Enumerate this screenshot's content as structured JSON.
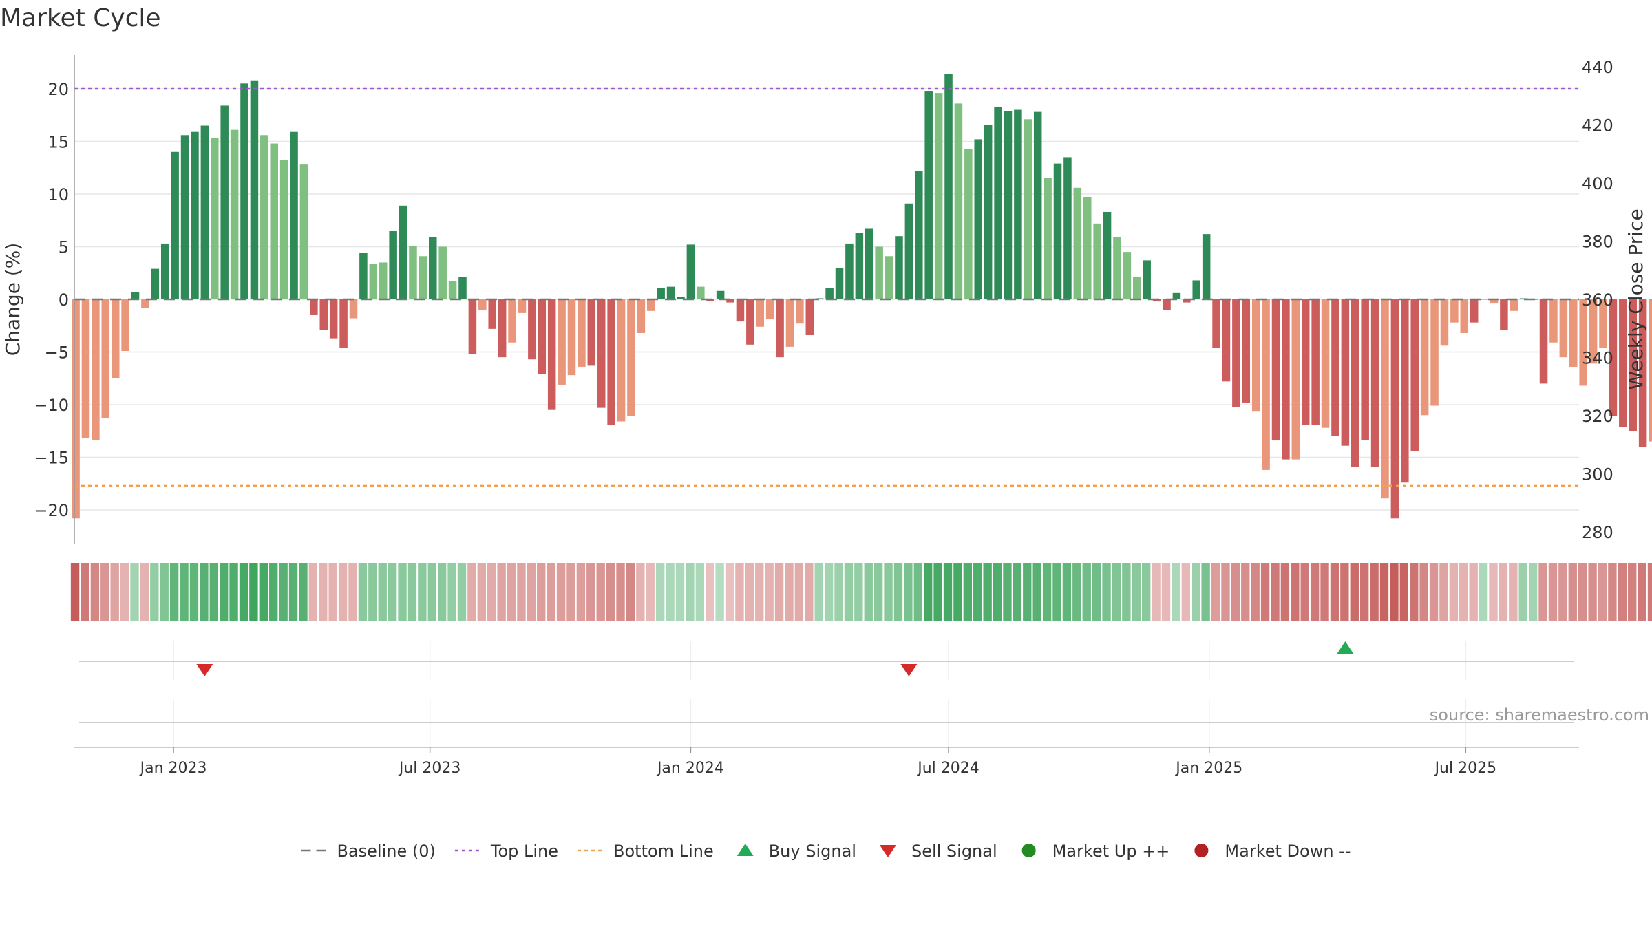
{
  "title": "Market Cycle",
  "source": "source: sharemaestro.com",
  "colors": {
    "up_dark": "#2e8b57",
    "up_light": "#7fbf7f",
    "down_dark": "#cd5c5c",
    "down_light": "#e9967a",
    "top_line": "#9b59d0",
    "bottom_line": "#f0a050",
    "buy": "#22aa55",
    "sell": "#d42a2a",
    "market_up": "#228b22",
    "market_down": "#b22222",
    "baseline": "#777777",
    "grid": "#e6e6e6"
  },
  "chart_data": {
    "type": "bar",
    "ylabel": "Change (%)",
    "y2label": "Weekly Close Price",
    "ylim": [
      -23.2,
      23.2
    ],
    "y2lim": [
      276,
      444
    ],
    "yticks": [
      -20,
      -15,
      -10,
      -5,
      0,
      5,
      10,
      15,
      20
    ],
    "yticklabels": [
      "−20",
      "−15",
      "−10",
      "−5",
      "0",
      "5",
      "10",
      "15",
      "20"
    ],
    "y2ticks": [
      280,
      300,
      320,
      340,
      360,
      380,
      400,
      420,
      440
    ],
    "top_line": 20,
    "bottom_line": -17.7,
    "grid": true,
    "start_date": "2022-10-24",
    "week_days": 7,
    "xlim": [
      "2022-10-23",
      "2025-09-19"
    ],
    "xticks": [
      {
        "date": "2023-01-01",
        "label": "Jan 2023"
      },
      {
        "date": "2023-07-01",
        "label": "Jul 2023"
      },
      {
        "date": "2024-01-01",
        "label": "Jan 2024"
      },
      {
        "date": "2024-07-01",
        "label": "Jul 2024"
      },
      {
        "date": "2025-01-01",
        "label": "Jan 2025"
      },
      {
        "date": "2025-07-01",
        "label": "Jul 2025"
      }
    ],
    "values": [
      -20.8,
      -13.2,
      -13.4,
      -11.3,
      -7.5,
      -4.9,
      0.7,
      -0.8,
      2.9,
      5.3,
      14.0,
      15.6,
      15.9,
      16.5,
      15.3,
      18.4,
      16.1,
      20.5,
      20.8,
      15.6,
      14.8,
      13.2,
      15.9,
      12.8,
      -1.5,
      -2.9,
      -3.7,
      -4.6,
      -1.8,
      4.4,
      3.4,
      3.5,
      6.5,
      8.9,
      5.1,
      4.1,
      5.9,
      5.0,
      1.7,
      2.1,
      -5.2,
      -1.0,
      -2.8,
      -5.5,
      -4.1,
      -1.3,
      -5.7,
      -7.1,
      -10.5,
      -8.1,
      -7.2,
      -6.4,
      -6.3,
      -10.3,
      -11.9,
      -11.6,
      -11.1,
      -3.2,
      -1.1,
      1.1,
      1.2,
      0.2,
      5.2,
      1.2,
      -0.2,
      0.8,
      -0.3,
      -2.1,
      -4.3,
      -2.6,
      -1.9,
      -5.5,
      -4.5,
      -2.3,
      -3.4,
      0.1,
      1.1,
      3.0,
      5.3,
      6.3,
      6.7,
      5.0,
      4.1,
      6.0,
      9.1,
      12.2,
      19.8,
      19.6,
      21.4,
      18.6,
      14.3,
      15.2,
      16.6,
      18.3,
      17.9,
      18.0,
      17.1,
      17.8,
      11.5,
      12.9,
      13.5,
      10.6,
      9.7,
      7.2,
      8.3,
      5.9,
      4.5,
      2.1,
      3.7,
      -0.2,
      -1.0,
      0.6,
      -0.3,
      1.8,
      6.2,
      -4.6,
      -7.8,
      -10.2,
      -9.8,
      -10.6,
      -16.2,
      -13.4,
      -15.2,
      -15.2,
      -11.9,
      -11.9,
      -12.2,
      -13.0,
      -13.9,
      -15.9,
      -13.4,
      -15.9,
      -18.9,
      -20.8,
      -17.4,
      -14.4,
      -11.0,
      -10.1,
      -4.4,
      -2.2,
      -3.2,
      -2.2,
      0.0,
      -0.4,
      -2.9,
      -1.1,
      0.1,
      0.0,
      -8.0,
      -4.1,
      -5.5,
      -6.4,
      -8.2,
      -6.1,
      -4.6,
      -11.1,
      -12.1,
      -12.5,
      -14.0,
      -13.5
    ],
    "shade": [
      1,
      1,
      1,
      1,
      1,
      1,
      0,
      1,
      0,
      0,
      0,
      0,
      0,
      0,
      1,
      0,
      1,
      0,
      0,
      1,
      1,
      1,
      0,
      1,
      0,
      0,
      0,
      0,
      1,
      0,
      1,
      1,
      0,
      0,
      1,
      1,
      0,
      1,
      1,
      0,
      0,
      1,
      0,
      0,
      1,
      1,
      0,
      0,
      0,
      1,
      1,
      1,
      0,
      0,
      0,
      1,
      1,
      1,
      1,
      0,
      0,
      0,
      0,
      1,
      0,
      0,
      0,
      0,
      0,
      1,
      1,
      0,
      1,
      1,
      0,
      0,
      0,
      0,
      0,
      0,
      0,
      1,
      1,
      0,
      0,
      0,
      0,
      1,
      0,
      1,
      1,
      0,
      0,
      0,
      0,
      0,
      1,
      0,
      1,
      0,
      0,
      1,
      1,
      1,
      0,
      1,
      1,
      1,
      0,
      0,
      0,
      0,
      0,
      0,
      0,
      0,
      0,
      0,
      0,
      1,
      1,
      0,
      0,
      1,
      0,
      0,
      1,
      0,
      0,
      0,
      0,
      0,
      1,
      0,
      0,
      0,
      1,
      1,
      1,
      1,
      1,
      0,
      1,
      1,
      0,
      1,
      0,
      0,
      0,
      1,
      1,
      1,
      1,
      1,
      1,
      0,
      0,
      0,
      0,
      1
    ],
    "heat": [
      -0.9,
      -0.7,
      -0.6,
      -0.5,
      -0.4,
      -0.3,
      0.3,
      -0.3,
      0.4,
      0.5,
      0.7,
      0.7,
      0.7,
      0.75,
      0.75,
      0.8,
      0.8,
      0.85,
      0.9,
      0.85,
      0.8,
      0.75,
      0.75,
      0.75,
      -0.3,
      -0.3,
      -0.3,
      -0.3,
      -0.3,
      0.45,
      0.45,
      0.45,
      0.45,
      0.45,
      0.45,
      0.45,
      0.45,
      0.45,
      0.4,
      0.4,
      -0.35,
      -0.35,
      -0.35,
      -0.4,
      -0.4,
      -0.4,
      -0.4,
      -0.45,
      -0.45,
      -0.45,
      -0.45,
      -0.45,
      -0.5,
      -0.5,
      -0.55,
      -0.55,
      -0.6,
      -0.3,
      -0.25,
      0.25,
      0.25,
      0.25,
      0.3,
      0.25,
      -0.2,
      0.2,
      -0.2,
      -0.3,
      -0.3,
      -0.3,
      -0.3,
      -0.35,
      -0.35,
      -0.35,
      -0.35,
      0.3,
      0.3,
      0.35,
      0.4,
      0.4,
      0.45,
      0.45,
      0.45,
      0.5,
      0.55,
      0.6,
      0.85,
      0.85,
      0.85,
      0.85,
      0.8,
      0.8,
      0.8,
      0.8,
      0.75,
      0.75,
      0.75,
      0.75,
      0.7,
      0.7,
      0.7,
      0.65,
      0.6,
      0.6,
      0.55,
      0.5,
      0.5,
      0.45,
      0.45,
      -0.25,
      -0.25,
      0.25,
      -0.25,
      0.35,
      0.55,
      -0.45,
      -0.5,
      -0.55,
      -0.55,
      -0.6,
      -0.7,
      -0.7,
      -0.75,
      -0.75,
      -0.7,
      -0.7,
      -0.7,
      -0.75,
      -0.75,
      -0.8,
      -0.75,
      -0.8,
      -0.85,
      -0.9,
      -0.85,
      -0.75,
      -0.6,
      -0.5,
      -0.4,
      -0.3,
      -0.3,
      -0.3,
      0.25,
      -0.25,
      -0.3,
      -0.3,
      0.35,
      0.3,
      -0.5,
      -0.5,
      -0.5,
      -0.55,
      -0.55,
      -0.55,
      -0.5,
      -0.6,
      -0.65,
      -0.65,
      -0.7,
      -0.7
    ],
    "signals": [
      {
        "date": "2023-01-23",
        "type": "sell"
      },
      {
        "date": "2024-06-03",
        "type": "sell"
      },
      {
        "date": "2025-04-07",
        "type": "buy"
      }
    ],
    "legend": {
      "placement": "bottom",
      "items": [
        {
          "key": "baseline",
          "label": "Baseline (0)"
        },
        {
          "key": "top",
          "label": "Top Line"
        },
        {
          "key": "bottom",
          "label": "Bottom Line"
        },
        {
          "key": "buy",
          "label": "Buy Signal"
        },
        {
          "key": "sell",
          "label": "Sell Signal"
        },
        {
          "key": "mup",
          "label": "Market Up ++"
        },
        {
          "key": "mdown",
          "label": "Market Down --"
        }
      ]
    }
  }
}
